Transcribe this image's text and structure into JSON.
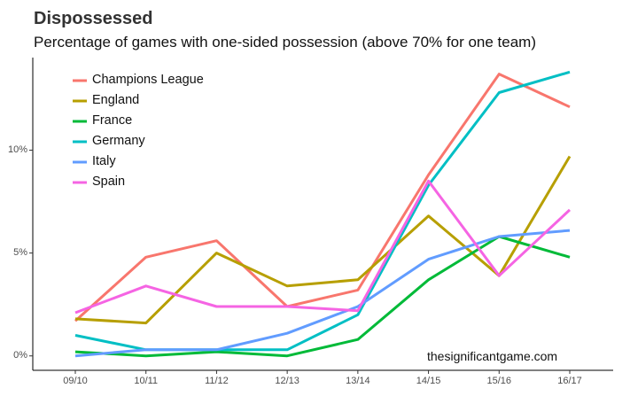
{
  "header": {
    "title": "Dispossessed",
    "subtitle": "Percentage of games with one-sided possession (above 70% for one team)"
  },
  "caption": "thesignificantgame.com",
  "chart_data": {
    "type": "line",
    "title": "Dispossessed",
    "subtitle": "Percentage of games with one-sided possession (above 70% for one team)",
    "xlabel": "",
    "ylabel": "",
    "categories": [
      "09/10",
      "10/11",
      "11/12",
      "12/13",
      "13/14",
      "14/15",
      "15/16",
      "16/17"
    ],
    "y_ticks": [
      {
        "value": 0,
        "label": "0%"
      },
      {
        "value": 5,
        "label": "5%"
      },
      {
        "value": 10,
        "label": "10%"
      }
    ],
    "ylim": [
      -0.7,
      14.5
    ],
    "grid": false,
    "legend_position": "top-left",
    "series": [
      {
        "name": "Champions League",
        "color": "#F8766D",
        "values": [
          1.7,
          4.8,
          5.6,
          2.4,
          3.2,
          8.8,
          13.7,
          12.1
        ]
      },
      {
        "name": "England",
        "color": "#B79F00",
        "values": [
          1.8,
          1.6,
          5.0,
          3.4,
          3.7,
          6.8,
          3.9,
          9.7
        ]
      },
      {
        "name": "France",
        "color": "#00BA38",
        "values": [
          0.2,
          0.0,
          0.2,
          0.0,
          0.8,
          3.7,
          5.8,
          4.8
        ]
      },
      {
        "name": "Germany",
        "color": "#00BFC4",
        "values": [
          1.0,
          0.3,
          0.3,
          0.3,
          2.0,
          8.3,
          12.8,
          13.8
        ]
      },
      {
        "name": "Italy",
        "color": "#619CFF",
        "values": [
          0.0,
          0.3,
          0.3,
          1.1,
          2.4,
          4.7,
          5.8,
          6.1
        ]
      },
      {
        "name": "Spain",
        "color": "#F564E3",
        "values": [
          2.1,
          3.4,
          2.4,
          2.4,
          2.2,
          8.5,
          3.9,
          7.1
        ]
      }
    ]
  }
}
